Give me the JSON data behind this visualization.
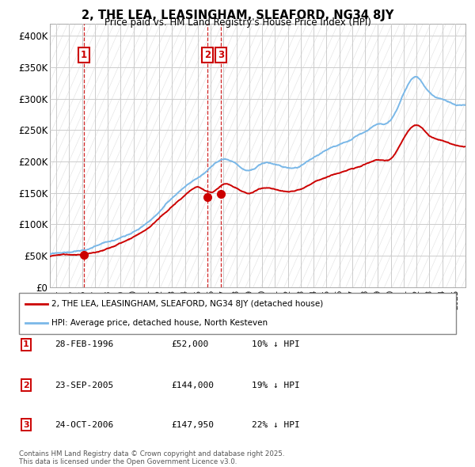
{
  "title": "2, THE LEA, LEASINGHAM, SLEAFORD, NG34 8JY",
  "subtitle": "Price paid vs. HM Land Registry's House Price Index (HPI)",
  "ylim": [
    0,
    420000
  ],
  "yticks": [
    0,
    50000,
    100000,
    150000,
    200000,
    250000,
    300000,
    350000,
    400000
  ],
  "ytick_labels": [
    "£0",
    "£50K",
    "£100K",
    "£150K",
    "£200K",
    "£250K",
    "£300K",
    "£350K",
    "£400K"
  ],
  "xlim_start": 1993.5,
  "xlim_end": 2025.8,
  "sale_dates": [
    1996.16,
    2005.73,
    2006.81
  ],
  "sale_prices": [
    52000,
    144000,
    147950
  ],
  "sale_labels": [
    "1",
    "2",
    "3"
  ],
  "hpi_color": "#7ab8e8",
  "price_color": "#cc0000",
  "legend_line1": "2, THE LEA, LEASINGHAM, SLEAFORD, NG34 8JY (detached house)",
  "legend_line2": "HPI: Average price, detached house, North Kesteven",
  "table_entries": [
    {
      "label": "1",
      "date": "28-FEB-1996",
      "price": "£52,000",
      "hpi": "10% ↓ HPI"
    },
    {
      "label": "2",
      "date": "23-SEP-2005",
      "price": "£144,000",
      "hpi": "19% ↓ HPI"
    },
    {
      "label": "3",
      "date": "24-OCT-2006",
      "price": "£147,950",
      "hpi": "22% ↓ HPI"
    }
  ],
  "footnote": "Contains HM Land Registry data © Crown copyright and database right 2025.\nThis data is licensed under the Open Government Licence v3.0.",
  "grid_color": "#cccccc"
}
